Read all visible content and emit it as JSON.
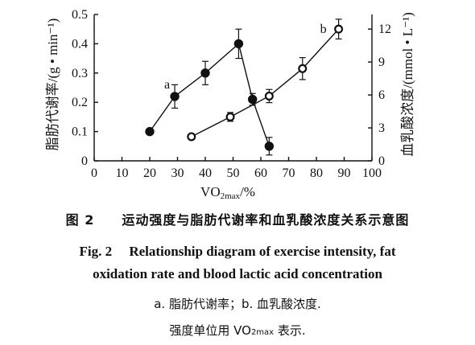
{
  "chart_data": {
    "type": "line",
    "x_axis": {
      "label_main": "VO",
      "label_sub": "2max",
      "label_unit": "/%",
      "range": [
        0,
        100
      ],
      "ticks": [
        0,
        10,
        20,
        30,
        40,
        50,
        60,
        70,
        80,
        90,
        100
      ]
    },
    "y_left": {
      "label": "脂肪代谢率/(g • min⁻¹)",
      "range": [
        0,
        0.5
      ],
      "ticks": [
        "0",
        "0.1",
        "0.2",
        "0.3",
        "0.4",
        "0.5"
      ]
    },
    "y_right": {
      "label": "血乳酸浓度/(mmol • L⁻¹)",
      "range": [
        0,
        13.33
      ],
      "ticks": [
        "0",
        "3",
        "6",
        "9",
        "12"
      ]
    },
    "series": [
      {
        "name": "a",
        "axis": "left",
        "marker": "filled-circle",
        "x": [
          20,
          29,
          40,
          52,
          57,
          63
        ],
        "y": [
          0.1,
          0.22,
          0.3,
          0.4,
          0.21,
          0.05
        ],
        "err": [
          0,
          0.04,
          0.04,
          0.05,
          0.02,
          0.03
        ]
      },
      {
        "name": "b",
        "axis": "right",
        "marker": "open-circle",
        "x": [
          35,
          49,
          63,
          75,
          88
        ],
        "y": [
          2.2,
          4.0,
          5.9,
          8.4,
          12.0
        ],
        "err": [
          0,
          0.4,
          0.6,
          1.0,
          0.9
        ]
      }
    ],
    "grid": false,
    "legend": "none"
  },
  "captions": {
    "zh": "图 2　　运动强度与脂肪代谢率和血乳酸浓度关系示意图",
    "en1": "Fig. 2　 Relationship diagram of exercise intensity, fat",
    "en2": "oxidation rate and blood lactic acid concentration",
    "note1": "a. 脂肪代谢率；b. 血乳酸浓度.",
    "note2_pre": "强度单位用 VO",
    "note2_sub": "2max",
    "note2_post": " 表示."
  }
}
